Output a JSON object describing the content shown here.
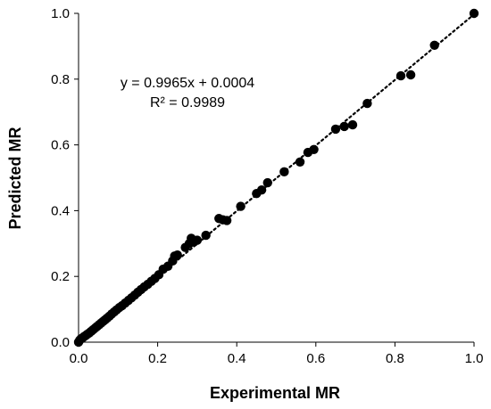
{
  "chart_data": {
    "type": "scatter",
    "xlabel": "Experimental MR",
    "ylabel": "Predicted MR",
    "xlim": [
      0,
      1
    ],
    "ylim": [
      0,
      1
    ],
    "xticks": [
      "0.0",
      "0.2",
      "0.4",
      "0.6",
      "0.8",
      "1.0"
    ],
    "yticks": [
      "0.0",
      "0.2",
      "0.4",
      "0.6",
      "0.8",
      "1.0"
    ],
    "grid": false,
    "legend": "none",
    "annotations": {
      "equation": "y = 0.9965x + 0.0004",
      "r_squared": "R² = 0.9989"
    },
    "trendline": {
      "slope": 0.9965,
      "intercept": 0.0004,
      "style": "dotted",
      "color": "#000000"
    },
    "marker_color": "#000000",
    "series": [
      {
        "points": [
          [
            0.0,
            0.0
          ],
          [
            0.003,
            0.006
          ],
          [
            0.006,
            0.01
          ],
          [
            0.01,
            0.013
          ],
          [
            0.014,
            0.017
          ],
          [
            0.018,
            0.02
          ],
          [
            0.022,
            0.024
          ],
          [
            0.027,
            0.028
          ],
          [
            0.032,
            0.033
          ],
          [
            0.037,
            0.038
          ],
          [
            0.042,
            0.043
          ],
          [
            0.047,
            0.048
          ],
          [
            0.052,
            0.053
          ],
          [
            0.057,
            0.058
          ],
          [
            0.062,
            0.063
          ],
          [
            0.067,
            0.068
          ],
          [
            0.072,
            0.073
          ],
          [
            0.078,
            0.079
          ],
          [
            0.084,
            0.086
          ],
          [
            0.09,
            0.092
          ],
          [
            0.096,
            0.098
          ],
          [
            0.103,
            0.105
          ],
          [
            0.11,
            0.111
          ],
          [
            0.118,
            0.119
          ],
          [
            0.126,
            0.127
          ],
          [
            0.134,
            0.135
          ],
          [
            0.142,
            0.143
          ],
          [
            0.15,
            0.152
          ],
          [
            0.158,
            0.16
          ],
          [
            0.166,
            0.168
          ],
          [
            0.175,
            0.176
          ],
          [
            0.184,
            0.185
          ],
          [
            0.193,
            0.194
          ],
          [
            0.203,
            0.205
          ],
          [
            0.214,
            0.222
          ],
          [
            0.226,
            0.231
          ],
          [
            0.238,
            0.247
          ],
          [
            0.243,
            0.262
          ],
          [
            0.25,
            0.265
          ],
          [
            0.27,
            0.288
          ],
          [
            0.28,
            0.3
          ],
          [
            0.285,
            0.316
          ],
          [
            0.292,
            0.305
          ],
          [
            0.3,
            0.31
          ],
          [
            0.322,
            0.325
          ],
          [
            0.355,
            0.376
          ],
          [
            0.365,
            0.372
          ],
          [
            0.375,
            0.37
          ],
          [
            0.41,
            0.413
          ],
          [
            0.45,
            0.452
          ],
          [
            0.463,
            0.463
          ],
          [
            0.478,
            0.485
          ],
          [
            0.52,
            0.518
          ],
          [
            0.56,
            0.548
          ],
          [
            0.58,
            0.577
          ],
          [
            0.595,
            0.586
          ],
          [
            0.65,
            0.648
          ],
          [
            0.672,
            0.656
          ],
          [
            0.693,
            0.661
          ],
          [
            0.73,
            0.726
          ],
          [
            0.815,
            0.81
          ],
          [
            0.84,
            0.813
          ],
          [
            0.9,
            0.903
          ],
          [
            1.0,
            1.0
          ]
        ]
      }
    ]
  }
}
